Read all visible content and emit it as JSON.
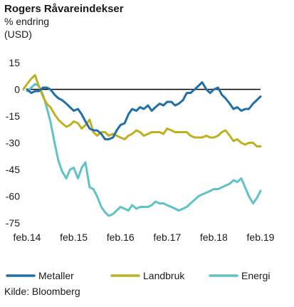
{
  "chart_data": {
    "type": "line",
    "title": "Rogers Råvareindekser",
    "subtitle": "% endring",
    "ylabel": "(USD)",
    "xlabel": "",
    "source": "Kilde: Bloomberg",
    "ylim": [
      -75,
      15
    ],
    "xlim": [
      2014.08,
      2019.08
    ],
    "yticks": [
      "15",
      "0",
      "-15",
      "-30",
      "-45",
      "-60",
      "-75"
    ],
    "ytick_values": [
      15,
      0,
      -15,
      -30,
      -45,
      -60,
      -75
    ],
    "xticks": [
      "feb.14",
      "feb.15",
      "feb.16",
      "feb.17",
      "feb.18",
      "feb.19"
    ],
    "xtick_values": [
      2014.08,
      2015.08,
      2016.08,
      2017.08,
      2018.08,
      2019.08
    ],
    "zero_line": true,
    "grid": false,
    "legend_position": "bottom",
    "colors": {
      "Metaller": "#1f6fa8",
      "Landbruk": "#c0b020",
      "Energi": "#5fc2c6"
    },
    "series": [
      {
        "name": "Metaller",
        "x": [
          2014.08,
          2014.17,
          2014.25,
          2014.33,
          2014.42,
          2014.5,
          2014.58,
          2014.67,
          2014.75,
          2014.83,
          2014.92,
          2015.0,
          2015.08,
          2015.17,
          2015.25,
          2015.33,
          2015.42,
          2015.5,
          2015.58,
          2015.67,
          2015.75,
          2015.83,
          2015.92,
          2016.0,
          2016.08,
          2016.17,
          2016.25,
          2016.33,
          2016.42,
          2016.5,
          2016.58,
          2016.67,
          2016.75,
          2016.83,
          2016.92,
          2017.0,
          2017.08,
          2017.17,
          2017.25,
          2017.33,
          2017.42,
          2017.5,
          2017.58,
          2017.67,
          2017.75,
          2017.83,
          2017.92,
          2018.0,
          2018.08,
          2018.17,
          2018.25,
          2018.33,
          2018.42,
          2018.5,
          2018.58,
          2018.67,
          2018.75,
          2018.83,
          2018.92,
          2019.0,
          2019.08
        ],
        "values": [
          0,
          -2,
          -1,
          -1,
          1,
          1,
          0,
          -3,
          -5,
          -6,
          -8,
          -10,
          -12,
          -11,
          -14,
          -18,
          -22,
          -23,
          -23,
          -25,
          -28,
          -28,
          -27,
          -23,
          -20,
          -19,
          -14,
          -11,
          -12,
          -10,
          -11,
          -9,
          -12,
          -10,
          -8,
          -9,
          -7,
          -7,
          -9,
          -8,
          -6,
          -2,
          -2,
          0,
          2,
          4,
          0,
          -2,
          0,
          1,
          -3,
          -5,
          -8,
          -11,
          -10,
          -12,
          -11,
          -11,
          -8,
          -6,
          -4
        ],
        "description_note": ""
      },
      {
        "name": "Landbruk",
        "x": [
          2014.0,
          2014.08,
          2014.17,
          2014.25,
          2014.33,
          2014.42,
          2014.5,
          2014.58,
          2014.67,
          2014.75,
          2014.83,
          2014.92,
          2015.0,
          2015.08,
          2015.17,
          2015.25,
          2015.33,
          2015.42,
          2015.5,
          2015.58,
          2015.67,
          2015.75,
          2015.83,
          2015.92,
          2016.0,
          2016.08,
          2016.17,
          2016.25,
          2016.33,
          2016.42,
          2016.5,
          2016.58,
          2016.67,
          2016.75,
          2016.83,
          2016.92,
          2017.0,
          2017.08,
          2017.17,
          2017.25,
          2017.33,
          2017.42,
          2017.5,
          2017.58,
          2017.67,
          2017.75,
          2017.83,
          2017.92,
          2018.0,
          2018.08,
          2018.17,
          2018.25,
          2018.33,
          2018.42,
          2018.5,
          2018.58,
          2018.67,
          2018.75,
          2018.83,
          2018.92,
          2019.0,
          2019.08
        ],
        "values": [
          0,
          3,
          6,
          8,
          2,
          -4,
          -8,
          -10,
          -14,
          -17,
          -19,
          -21,
          -20,
          -18,
          -19,
          -22,
          -20,
          -17,
          -24,
          -26,
          -24,
          -24,
          -26,
          -25,
          -26,
          -27,
          -28,
          -26,
          -25,
          -23,
          -24,
          -26,
          -25,
          -24,
          -24,
          -24,
          -25,
          -22,
          -23,
          -24,
          -24,
          -24,
          -24,
          -26,
          -27,
          -27,
          -27,
          -26,
          -27,
          -27,
          -26,
          -24,
          -23,
          -26,
          -29,
          -28,
          -30,
          -31,
          -30,
          -30,
          -32,
          -32
        ],
        "description_note": ""
      },
      {
        "name": "Energi",
        "x": [
          2014.08,
          2014.17,
          2014.25,
          2014.33,
          2014.42,
          2014.5,
          2014.58,
          2014.67,
          2014.75,
          2014.83,
          2014.92,
          2015.0,
          2015.08,
          2015.17,
          2015.25,
          2015.33,
          2015.42,
          2015.5,
          2015.58,
          2015.67,
          2015.75,
          2015.83,
          2015.92,
          2016.0,
          2016.08,
          2016.17,
          2016.25,
          2016.33,
          2016.42,
          2016.5,
          2016.58,
          2016.67,
          2016.75,
          2016.83,
          2016.92,
          2017.0,
          2017.08,
          2017.17,
          2017.25,
          2017.33,
          2017.42,
          2017.5,
          2017.58,
          2017.67,
          2017.75,
          2017.83,
          2017.92,
          2018.0,
          2018.08,
          2018.17,
          2018.25,
          2018.33,
          2018.42,
          2018.5,
          2018.58,
          2018.67,
          2018.75,
          2018.83,
          2018.92,
          2019.0,
          2019.08
        ],
        "values": [
          -1,
          1,
          3,
          2,
          -3,
          -10,
          -18,
          -30,
          -40,
          -46,
          -50,
          -45,
          -44,
          -50,
          -44,
          -41,
          -55,
          -56,
          -60,
          -66,
          -69,
          -71,
          -70,
          -68,
          -66,
          -67,
          -68,
          -65,
          -67,
          -66,
          -66,
          -66,
          -65,
          -63,
          -64,
          -64,
          -65,
          -66,
          -67,
          -68,
          -67,
          -66,
          -64,
          -62,
          -60,
          -59,
          -58,
          -57,
          -56,
          -56,
          -55,
          -54,
          -53,
          -51,
          -52,
          -50,
          -55,
          -60,
          -64,
          -61,
          -57
        ],
        "description_note": ""
      }
    ]
  }
}
